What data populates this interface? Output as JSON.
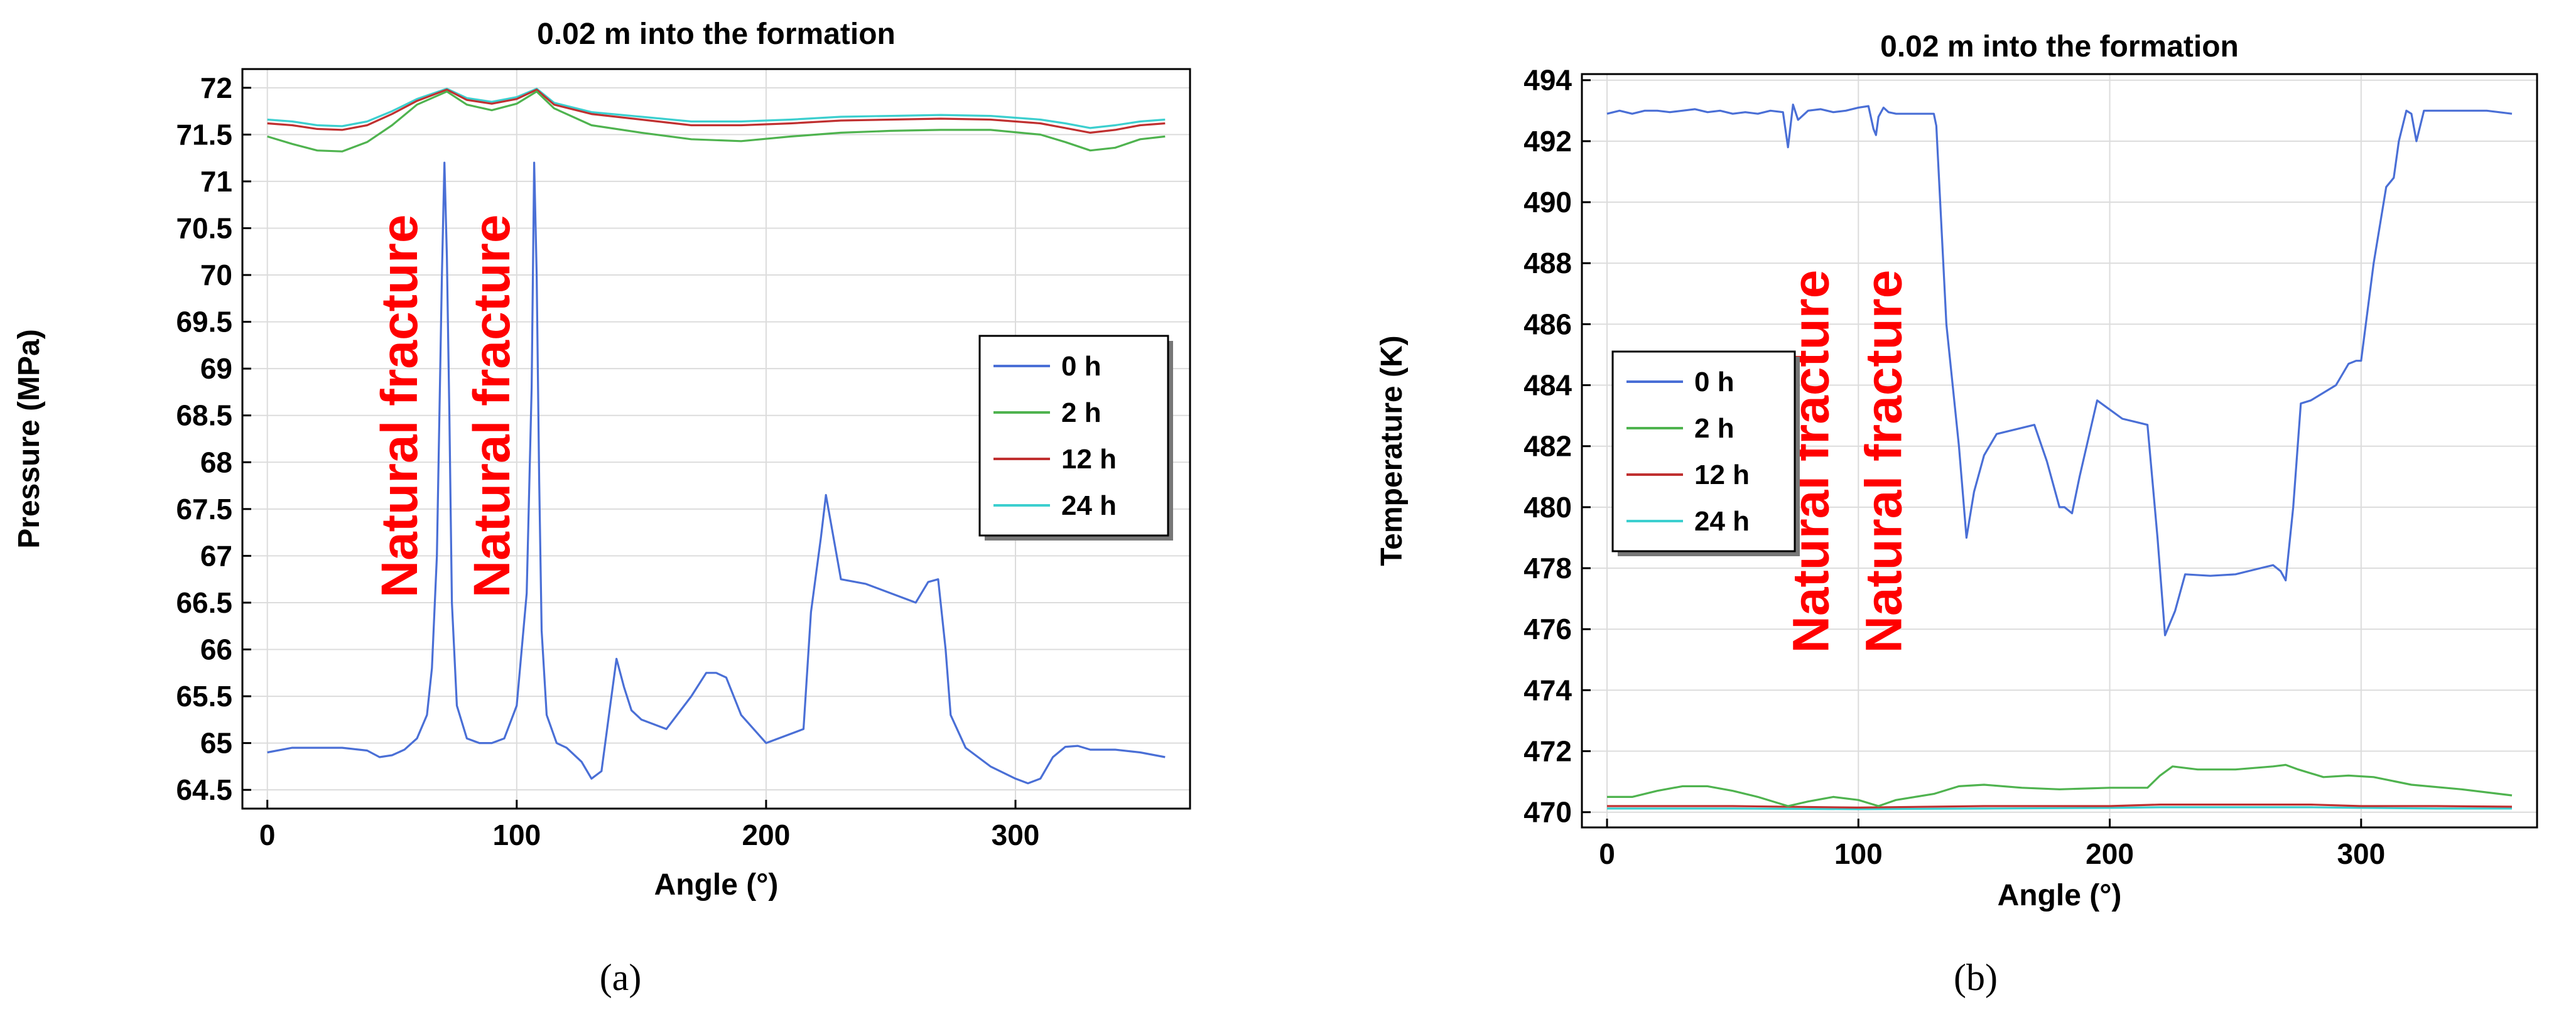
{
  "chart_data": [
    {
      "type": "line",
      "panel_label": "(a)",
      "title": "0.02 m into the formation",
      "xlabel": "Angle (°)",
      "ylabel": "Pressure (MPa)",
      "xlim": [
        -10,
        370
      ],
      "ylim": [
        64.3,
        72.2
      ],
      "xticks": [
        0,
        100,
        200,
        300
      ],
      "yticks": [
        64.5,
        65,
        65.5,
        66,
        66.5,
        67,
        67.5,
        68,
        68.5,
        69,
        69.5,
        70,
        70.5,
        71,
        71.5,
        72
      ],
      "grid": true,
      "legend_position": "right",
      "annotations": [
        {
          "text": "Natural fracture",
          "x": 60,
          "y": 68.6
        },
        {
          "text": "Natural fracture",
          "x": 97,
          "y": 68.6
        }
      ],
      "series": [
        {
          "name": "0 h",
          "color": "#4a6fd6",
          "x": [
            0,
            10,
            20,
            30,
            40,
            45,
            50,
            55,
            60,
            64,
            66,
            68,
            70,
            71,
            72,
            73,
            74,
            76,
            80,
            85,
            90,
            95,
            100,
            104,
            106,
            107,
            108,
            109,
            110,
            112,
            116,
            120,
            126,
            130,
            134,
            137,
            140,
            143,
            146,
            150,
            160,
            170,
            176,
            180,
            184,
            190,
            200,
            215,
            218,
            222,
            224,
            230,
            240,
            250,
            260,
            265,
            269,
            272,
            274,
            280,
            290,
            300,
            305,
            310,
            315,
            320,
            325,
            330,
            340,
            350,
            360
          ],
          "y": [
            64.9,
            64.95,
            64.95,
            64.95,
            64.92,
            64.85,
            64.87,
            64.93,
            65.05,
            65.3,
            65.8,
            67.0,
            70.0,
            71.2,
            70.2,
            68.5,
            66.5,
            65.4,
            65.05,
            65.0,
            65.0,
            65.05,
            65.4,
            66.6,
            68.8,
            71.2,
            70.0,
            67.8,
            66.2,
            65.3,
            65.0,
            64.95,
            64.8,
            64.62,
            64.7,
            65.3,
            65.9,
            65.6,
            65.35,
            65.25,
            65.15,
            65.5,
            65.75,
            65.75,
            65.7,
            65.3,
            65.0,
            65.15,
            66.4,
            67.2,
            67.65,
            66.75,
            66.7,
            66.6,
            66.5,
            66.72,
            66.75,
            66.0,
            65.3,
            64.95,
            64.75,
            64.62,
            64.57,
            64.62,
            64.85,
            64.96,
            64.97,
            64.93,
            64.93,
            64.9,
            64.85
          ]
        },
        {
          "name": "2 h",
          "color": "#4fb34f",
          "x": [
            0,
            10,
            20,
            30,
            40,
            50,
            60,
            72,
            80,
            90,
            100,
            108,
            115,
            130,
            150,
            170,
            190,
            210,
            230,
            250,
            270,
            290,
            310,
            320,
            330,
            340,
            350,
            360
          ],
          "y": [
            71.48,
            71.4,
            71.33,
            71.32,
            71.42,
            71.6,
            71.82,
            71.96,
            71.82,
            71.76,
            71.83,
            71.96,
            71.78,
            71.6,
            71.52,
            71.45,
            71.43,
            71.48,
            71.52,
            71.54,
            71.55,
            71.55,
            71.5,
            71.42,
            71.33,
            71.36,
            71.45,
            71.48
          ]
        },
        {
          "name": "12 h",
          "color": "#c03030",
          "x": [
            0,
            10,
            20,
            30,
            40,
            50,
            60,
            72,
            80,
            90,
            100,
            108,
            115,
            130,
            150,
            170,
            190,
            210,
            230,
            250,
            270,
            290,
            310,
            320,
            330,
            340,
            350,
            360
          ],
          "y": [
            71.62,
            71.6,
            71.56,
            71.55,
            71.6,
            71.72,
            71.86,
            71.98,
            71.87,
            71.83,
            71.88,
            71.98,
            71.82,
            71.72,
            71.66,
            71.6,
            71.6,
            71.62,
            71.65,
            71.66,
            71.67,
            71.66,
            71.62,
            71.57,
            71.52,
            71.55,
            71.6,
            71.62
          ]
        },
        {
          "name": "24 h",
          "color": "#3ccfcf",
          "x": [
            0,
            10,
            20,
            30,
            40,
            50,
            60,
            72,
            80,
            90,
            100,
            108,
            115,
            130,
            150,
            170,
            190,
            210,
            230,
            250,
            270,
            290,
            310,
            320,
            330,
            340,
            350,
            360
          ],
          "y": [
            71.66,
            71.64,
            71.6,
            71.59,
            71.64,
            71.75,
            71.88,
            71.99,
            71.89,
            71.85,
            71.9,
            71.99,
            71.84,
            71.74,
            71.69,
            71.64,
            71.64,
            71.66,
            71.69,
            71.7,
            71.71,
            71.7,
            71.66,
            71.62,
            71.57,
            71.6,
            71.64,
            71.66
          ]
        }
      ]
    },
    {
      "type": "line",
      "panel_label": "(b)",
      "title": "0.02 m into the formation",
      "xlabel": "Angle (°)",
      "ylabel": "Temperature (K)",
      "xlim": [
        -10,
        370
      ],
      "ylim": [
        469.5,
        494.2
      ],
      "xticks": [
        0,
        100,
        200,
        300
      ],
      "yticks": [
        470,
        472,
        474,
        476,
        478,
        480,
        482,
        484,
        486,
        488,
        490,
        492,
        494
      ],
      "grid": true,
      "legend_position": "left",
      "annotations": [
        {
          "text": "Natural fracture",
          "x": 88,
          "y": 481.5
        },
        {
          "text": "Natural fracture",
          "x": 117,
          "y": 481.5
        }
      ],
      "series": [
        {
          "name": "0 h",
          "color": "#4a6fd6",
          "x": [
            0,
            5,
            10,
            15,
            20,
            25,
            30,
            35,
            40,
            45,
            50,
            55,
            60,
            65,
            70,
            72,
            74,
            76,
            80,
            85,
            90,
            95,
            100,
            104,
            106,
            107,
            108,
            110,
            112,
            115,
            120,
            125,
            130,
            131,
            135,
            140,
            143,
            146,
            150,
            155,
            160,
            165,
            170,
            175,
            180,
            182,
            185,
            188,
            195,
            200,
            205,
            210,
            215,
            219,
            222,
            226,
            230,
            240,
            250,
            260,
            265,
            268,
            270,
            273,
            276,
            280,
            290,
            295,
            298,
            300,
            305,
            310,
            313,
            315,
            318,
            320,
            322,
            325,
            330,
            340,
            350,
            360
          ],
          "y": [
            492.9,
            493.0,
            492.9,
            493.0,
            493.0,
            492.95,
            493.0,
            493.05,
            492.95,
            493.0,
            492.9,
            492.95,
            492.9,
            493.0,
            492.95,
            491.8,
            493.2,
            492.7,
            493.0,
            493.05,
            492.95,
            493.0,
            493.1,
            493.15,
            492.4,
            492.2,
            492.8,
            493.1,
            492.95,
            492.9,
            492.9,
            492.9,
            492.9,
            492.5,
            486.0,
            482.0,
            479.0,
            480.5,
            481.7,
            482.4,
            482.5,
            482.6,
            482.7,
            481.5,
            480.0,
            480.0,
            479.8,
            481.0,
            483.5,
            483.2,
            482.9,
            482.8,
            482.7,
            479.0,
            475.8,
            476.6,
            477.8,
            477.75,
            477.8,
            478.0,
            478.1,
            477.9,
            477.6,
            480.0,
            483.4,
            483.5,
            484.0,
            484.7,
            484.8,
            484.8,
            488.0,
            490.5,
            490.8,
            492.0,
            493.0,
            492.9,
            492.0,
            493.0,
            493.0,
            493.0,
            493.0,
            492.9
          ]
        },
        {
          "name": "2 h",
          "color": "#4fb34f",
          "x": [
            0,
            10,
            20,
            30,
            40,
            50,
            60,
            72,
            80,
            90,
            100,
            108,
            115,
            130,
            140,
            150,
            165,
            180,
            200,
            215,
            220,
            225,
            235,
            250,
            265,
            270,
            275,
            285,
            295,
            305,
            320,
            340,
            360
          ],
          "y": [
            470.5,
            470.5,
            470.7,
            470.85,
            470.85,
            470.7,
            470.5,
            470.2,
            470.35,
            470.5,
            470.4,
            470.2,
            470.4,
            470.6,
            470.85,
            470.9,
            470.8,
            470.75,
            470.8,
            470.8,
            471.2,
            471.5,
            471.4,
            471.4,
            471.5,
            471.55,
            471.4,
            471.15,
            471.2,
            471.15,
            470.9,
            470.75,
            470.55
          ]
        },
        {
          "name": "12 h",
          "color": "#c03030",
          "x": [
            0,
            50,
            100,
            150,
            200,
            220,
            240,
            260,
            280,
            300,
            330,
            360
          ],
          "y": [
            470.2,
            470.2,
            470.15,
            470.2,
            470.2,
            470.25,
            470.25,
            470.25,
            470.25,
            470.2,
            470.2,
            470.18
          ]
        },
        {
          "name": "24 h",
          "color": "#3ccfcf",
          "x": [
            0,
            50,
            100,
            150,
            200,
            220,
            240,
            260,
            280,
            300,
            330,
            360
          ],
          "y": [
            470.12,
            470.12,
            470.1,
            470.12,
            470.14,
            470.16,
            470.16,
            470.16,
            470.16,
            470.14,
            470.12,
            470.12
          ]
        }
      ]
    }
  ]
}
